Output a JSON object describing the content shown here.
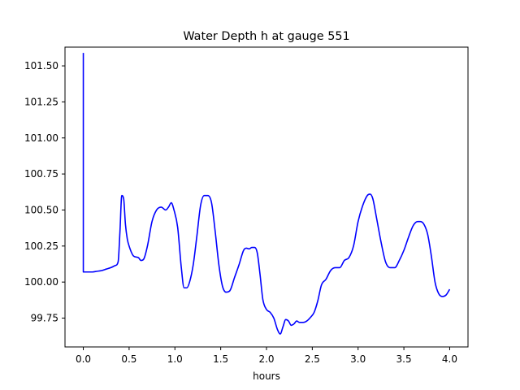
{
  "chart_data": {
    "type": "line",
    "title": "Water Depth h at gauge 551",
    "xlabel": "hours",
    "ylabel": "",
    "xlim": [
      -0.2,
      4.2
    ],
    "ylim": [
      99.55,
      101.63
    ],
    "xticks": [
      0.0,
      0.5,
      1.0,
      1.5,
      2.0,
      2.5,
      3.0,
      3.5,
      4.0
    ],
    "xtick_labels": [
      "0.0",
      "0.5",
      "1.0",
      "1.5",
      "2.0",
      "2.5",
      "3.0",
      "3.5",
      "4.0"
    ],
    "yticks": [
      99.75,
      100.0,
      100.25,
      100.5,
      100.75,
      101.0,
      101.25,
      101.5
    ],
    "ytick_labels": [
      "99.75",
      "100.00",
      "100.25",
      "100.50",
      "100.75",
      "101.00",
      "101.25",
      "101.50"
    ],
    "grid": false,
    "series": [
      {
        "color": "#0000ff",
        "x": [
          0.0,
          0.0,
          0.002,
          0.05,
          0.1,
          0.15,
          0.2,
          0.25,
          0.3,
          0.35,
          0.38,
          0.4,
          0.42,
          0.44,
          0.46,
          0.48,
          0.5,
          0.55,
          0.6,
          0.63,
          0.66,
          0.7,
          0.75,
          0.8,
          0.85,
          0.9,
          0.93,
          0.96,
          0.99,
          1.03,
          1.07,
          1.1,
          1.13,
          1.16,
          1.2,
          1.24,
          1.28,
          1.32,
          1.36,
          1.4,
          1.44,
          1.48,
          1.52,
          1.56,
          1.6,
          1.65,
          1.7,
          1.75,
          1.78,
          1.81,
          1.84,
          1.87,
          1.9,
          1.93,
          1.96,
          2.0,
          2.04,
          2.08,
          2.12,
          2.15,
          2.18,
          2.21,
          2.24,
          2.27,
          2.3,
          2.33,
          2.36,
          2.4,
          2.44,
          2.48,
          2.52,
          2.56,
          2.6,
          2.65,
          2.7,
          2.75,
          2.8,
          2.85,
          2.9,
          2.95,
          3.0,
          3.05,
          3.1,
          3.13,
          3.16,
          3.2,
          3.25,
          3.3,
          3.35,
          3.4,
          3.45,
          3.5,
          3.55,
          3.6,
          3.65,
          3.68,
          3.72,
          3.76,
          3.8,
          3.84,
          3.88,
          3.92,
          3.96,
          4.0
        ],
        "values": [
          101.59,
          100.07,
          100.07,
          100.07,
          100.07,
          100.075,
          100.08,
          100.09,
          100.1,
          100.115,
          100.14,
          100.35,
          100.6,
          100.58,
          100.4,
          100.3,
          100.25,
          100.18,
          100.17,
          100.15,
          100.16,
          100.25,
          100.42,
          100.5,
          100.52,
          100.5,
          100.52,
          100.55,
          100.5,
          100.38,
          100.1,
          99.96,
          99.96,
          100.0,
          100.12,
          100.32,
          100.53,
          100.6,
          100.6,
          100.55,
          100.35,
          100.12,
          99.97,
          99.93,
          99.94,
          100.03,
          100.12,
          100.22,
          100.235,
          100.23,
          100.24,
          100.24,
          100.2,
          100.05,
          99.88,
          99.81,
          99.79,
          99.75,
          99.67,
          99.64,
          99.69,
          99.74,
          99.73,
          99.7,
          99.71,
          99.73,
          99.72,
          99.72,
          99.73,
          99.755,
          99.79,
          99.87,
          99.98,
          100.02,
          100.08,
          100.1,
          100.1,
          100.15,
          100.17,
          100.25,
          100.42,
          100.53,
          100.6,
          100.61,
          100.58,
          100.45,
          100.28,
          100.14,
          100.1,
          100.1,
          100.15,
          100.22,
          100.31,
          100.39,
          100.42,
          100.42,
          100.4,
          100.33,
          100.18,
          100.0,
          99.92,
          99.9,
          99.91,
          99.95
        ]
      }
    ]
  }
}
